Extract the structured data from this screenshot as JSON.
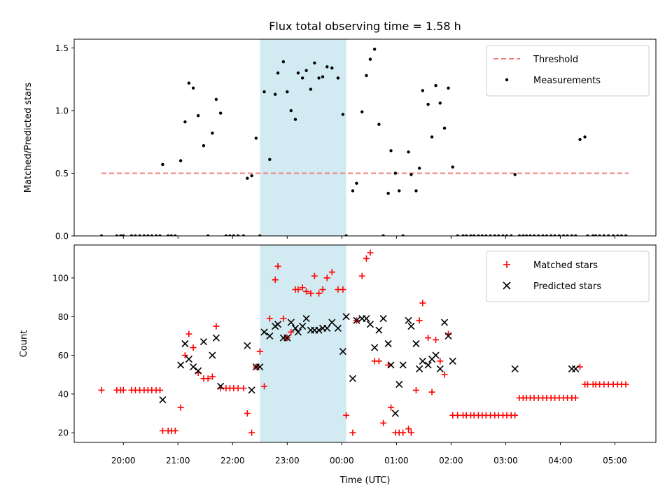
{
  "chart_data": {
    "title": "Flux total observing time = 1.58 h",
    "xlabel": "Time (UTC)",
    "x_unit": "hours (UTC; values >= 24 are after midnight)",
    "xlim": [
      19.1,
      29.75
    ],
    "xticks": [
      20,
      21,
      22,
      23,
      24,
      25,
      26,
      27,
      28,
      29
    ],
    "xtick_labels": [
      "20:00",
      "21:00",
      "22:00",
      "23:00",
      "00:00",
      "01:00",
      "02:00",
      "03:00",
      "04:00",
      "05:00"
    ],
    "highlight_span": [
      22.5,
      24.08
    ],
    "highlight_color": "#add8e6",
    "panels": [
      {
        "type": "scatter",
        "ylabel": "Matched/Predicted stars",
        "ylim": [
          0,
          1.57
        ],
        "yticks": [
          0.0,
          0.5,
          1.0,
          1.5
        ],
        "ytick_labels": [
          "0.0",
          "0.5",
          "1.0",
          "1.5"
        ],
        "threshold": {
          "label": "Threshold",
          "y": 0.5,
          "x_range": [
            19.6,
            29.25
          ],
          "color": "#f08080"
        },
        "legend_position": "top-right",
        "series": [
          {
            "name": "Measurements",
            "color": "#000000",
            "marker": "dot",
            "x": [
              19.6,
              19.88,
              19.95,
              20.0,
              20.15,
              20.22,
              20.3,
              20.38,
              20.45,
              20.52,
              20.6,
              20.67,
              20.72,
              20.82,
              20.88,
              20.95,
              21.05,
              21.13,
              21.2,
              21.28,
              21.37,
              21.47,
              21.55,
              21.63,
              21.7,
              21.78,
              21.88,
              21.95,
              22.02,
              22.1,
              22.2,
              22.27,
              22.35,
              22.43,
              22.5,
              22.58,
              22.68,
              22.78,
              22.83,
              22.93,
              23.0,
              23.07,
              23.15,
              23.2,
              23.28,
              23.35,
              23.43,
              23.5,
              23.58,
              23.65,
              23.73,
              23.82,
              23.93,
              24.02,
              24.08,
              24.2,
              24.27,
              24.37,
              24.45,
              24.52,
              24.6,
              24.68,
              24.76,
              24.85,
              24.9,
              24.98,
              25.05,
              25.12,
              25.22,
              25.27,
              25.36,
              25.42,
              25.48,
              25.58,
              25.65,
              25.72,
              25.8,
              25.88,
              25.95,
              26.03,
              26.12,
              26.22,
              26.28,
              26.36,
              26.42,
              26.5,
              26.57,
              26.64,
              26.72,
              26.8,
              26.87,
              26.95,
              27.02,
              27.1,
              27.17,
              27.25,
              27.32,
              27.38,
              27.45,
              27.52,
              27.6,
              27.68,
              27.75,
              27.83,
              27.9,
              27.98,
              28.06,
              28.13,
              28.21,
              28.28,
              28.36,
              28.45,
              28.5,
              28.6,
              28.65,
              28.72,
              28.8,
              28.88,
              28.97,
              29.05,
              29.12,
              29.2
            ],
            "y": [
              0.0,
              0.0,
              0.0,
              0.0,
              0.0,
              0.0,
              0.0,
              0.0,
              0.0,
              0.0,
              0.0,
              0.0,
              0.57,
              0.0,
              0.0,
              0.0,
              0.6,
              0.91,
              1.22,
              1.18,
              0.96,
              0.72,
              0.0,
              0.82,
              1.09,
              0.98,
              0.0,
              0.0,
              0.0,
              0.0,
              0.0,
              0.46,
              0.48,
              0.78,
              0.0,
              1.15,
              0.61,
              1.13,
              1.3,
              1.39,
              1.15,
              1.0,
              0.93,
              1.3,
              1.26,
              1.32,
              1.17,
              1.38,
              1.26,
              1.27,
              1.35,
              1.34,
              1.26,
              0.97,
              0.0,
              0.36,
              0.42,
              0.99,
              1.28,
              1.41,
              1.49,
              0.89,
              0.0,
              0.34,
              0.68,
              0.5,
              0.36,
              0.0,
              0.67,
              0.49,
              0.36,
              0.54,
              1.16,
              1.05,
              0.79,
              1.2,
              1.06,
              0.86,
              1.18,
              0.55,
              0.0,
              0.0,
              0.0,
              0.0,
              0.0,
              0.0,
              0.0,
              0.0,
              0.0,
              0.0,
              0.0,
              0.0,
              0.0,
              0.0,
              0.49,
              0.0,
              0.0,
              0.0,
              0.0,
              0.0,
              0.0,
              0.0,
              0.0,
              0.0,
              0.0,
              0.0,
              0.0,
              0.0,
              0.0,
              0.0,
              0.77,
              0.79,
              0.0,
              0.0,
              0.0,
              0.0,
              0.0,
              0.0,
              0.0,
              0.0,
              0.0,
              0.0
            ]
          }
        ]
      },
      {
        "type": "scatter",
        "ylabel": "Count",
        "ylim": [
          15,
          117
        ],
        "yticks": [
          20,
          40,
          60,
          80,
          100
        ],
        "ytick_labels": [
          "20",
          "40",
          "60",
          "80",
          "100"
        ],
        "legend_position": "top-right",
        "series": [
          {
            "name": "Matched stars",
            "color": "#ff0000",
            "marker": "plus",
            "x": [
              19.6,
              19.88,
              19.95,
              20.0,
              20.15,
              20.22,
              20.3,
              20.38,
              20.45,
              20.52,
              20.6,
              20.67,
              20.72,
              20.82,
              20.88,
              20.95,
              21.05,
              21.13,
              21.2,
              21.28,
              21.37,
              21.47,
              21.55,
              21.63,
              21.7,
              21.78,
              21.88,
              21.95,
              22.02,
              22.1,
              22.2,
              22.27,
              22.35,
              22.43,
              22.5,
              22.58,
              22.68,
              22.78,
              22.83,
              22.93,
              23.0,
              23.07,
              23.15,
              23.2,
              23.28,
              23.35,
              23.43,
              23.5,
              23.58,
              23.65,
              23.73,
              23.82,
              23.93,
              24.02,
              24.08,
              24.2,
              24.27,
              24.37,
              24.45,
              24.52,
              24.6,
              24.68,
              24.76,
              24.85,
              24.9,
              24.98,
              25.05,
              25.12,
              25.22,
              25.27,
              25.36,
              25.42,
              25.48,
              25.58,
              25.65,
              25.72,
              25.8,
              25.88,
              25.95,
              26.03,
              26.12,
              26.22,
              26.28,
              26.36,
              26.42,
              26.5,
              26.57,
              26.64,
              26.72,
              26.8,
              26.87,
              26.95,
              27.02,
              27.1,
              27.17,
              27.25,
              27.32,
              27.38,
              27.45,
              27.52,
              27.6,
              27.68,
              27.75,
              27.83,
              27.9,
              27.98,
              28.06,
              28.13,
              28.21,
              28.28,
              28.36,
              28.45,
              28.5,
              28.6,
              28.65,
              28.72,
              28.8,
              28.88,
              28.97,
              29.05,
              29.12,
              29.2
            ],
            "y": [
              42,
              42,
              42,
              42,
              42,
              42,
              42,
              42,
              42,
              42,
              42,
              42,
              21,
              21,
              21,
              21,
              33,
              60,
              71,
              64,
              51,
              48,
              48,
              49,
              75,
              43,
              43,
              43,
              43,
              43,
              43,
              30,
              20,
              54,
              62,
              44,
              79,
              99,
              106,
              79,
              69,
              72,
              94,
              94,
              95,
              93,
              92,
              101,
              92,
              94,
              100,
              103,
              94,
              94,
              29,
              20,
              78,
              101,
              110,
              113,
              57,
              57,
              25,
              55,
              33,
              20,
              20,
              20,
              22,
              20,
              42,
              78,
              87,
              69,
              41,
              68,
              57,
              50,
              71,
              29,
              29,
              29,
              29,
              29,
              29,
              29,
              29,
              29,
              29,
              29,
              29,
              29,
              29,
              29,
              29,
              38,
              38,
              38,
              38,
              38,
              38,
              38,
              38,
              38,
              38,
              38,
              38,
              38,
              38,
              38,
              54,
              45,
              45,
              45,
              45,
              45,
              45,
              45,
              45,
              45,
              45,
              45
            ]
          },
          {
            "name": "Predicted stars",
            "color": "#000000",
            "marker": "x",
            "x": [
              20.72,
              21.05,
              21.13,
              21.2,
              21.28,
              21.37,
              21.47,
              21.63,
              21.7,
              21.78,
              22.27,
              22.35,
              22.43,
              22.5,
              22.58,
              22.68,
              22.78,
              22.83,
              22.93,
              23.0,
              23.07,
              23.15,
              23.2,
              23.28,
              23.35,
              23.43,
              23.5,
              23.58,
              23.65,
              23.73,
              23.82,
              23.93,
              24.02,
              24.08,
              24.2,
              24.27,
              24.37,
              24.45,
              24.52,
              24.6,
              24.68,
              24.76,
              24.85,
              24.9,
              24.98,
              25.05,
              25.12,
              25.22,
              25.27,
              25.36,
              25.42,
              25.48,
              25.58,
              25.65,
              25.72,
              25.8,
              25.88,
              25.95,
              26.03,
              27.17,
              28.21,
              28.28
            ],
            "y": [
              37,
              55,
              66,
              58,
              54,
              52,
              67,
              60,
              69,
              44,
              65,
              42,
              54,
              54,
              72,
              70,
              75,
              76,
              69,
              69,
              77,
              74,
              72,
              75,
              79,
              73,
              73,
              73,
              74,
              74,
              77,
              74,
              62,
              80,
              48,
              78,
              79,
              79,
              76,
              64,
              73,
              79,
              66,
              55,
              30,
              45,
              55,
              78,
              75,
              66,
              53,
              57,
              55,
              58,
              60,
              53,
              77,
              70,
              57,
              53,
              53,
              53
            ]
          }
        ]
      }
    ]
  }
}
